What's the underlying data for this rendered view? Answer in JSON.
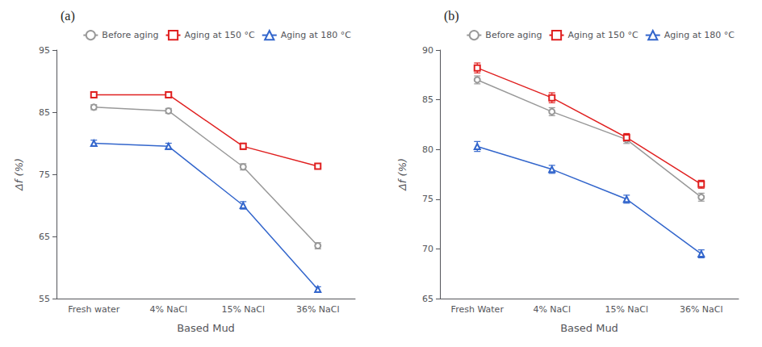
{
  "chart_data": [
    {
      "type": "line",
      "title": "(a)",
      "x_label": "Based Mud",
      "y_label": "Δf (%)",
      "categories": [
        "Fresh water",
        "4% NaCl",
        "15% NaCl",
        "36% NaCl"
      ],
      "ylim": [
        55,
        95
      ],
      "yticks": [
        55,
        65,
        75,
        85,
        95
      ],
      "grid": false,
      "legend": "upper right",
      "series": [
        {
          "name": "Before aging",
          "color": "#999999",
          "marker": "circle",
          "values": [
            85.8,
            85.2,
            76.2,
            63.5
          ],
          "errors": [
            0.4,
            0.4,
            0.5,
            0.5
          ]
        },
        {
          "name": "Aging at 150 °C",
          "color": "#e02020",
          "marker": "square",
          "values": [
            87.8,
            87.8,
            79.5,
            76.3
          ],
          "errors": [
            0.5,
            0.5,
            0.5,
            0.4
          ]
        },
        {
          "name": "Aging at 180 °C",
          "color": "#3366cc",
          "marker": "triangle",
          "values": [
            80.0,
            79.5,
            70.0,
            56.5
          ],
          "errors": [
            0.5,
            0.5,
            0.6,
            0.4
          ]
        }
      ]
    },
    {
      "type": "line",
      "title": "(b)",
      "x_label": "Based Mud",
      "y_label": "Δf (%)",
      "categories": [
        "Fresh Water",
        "4% NaCl",
        "15% NaCl",
        "36% NaCl"
      ],
      "ylim": [
        65,
        90
      ],
      "yticks": [
        65,
        70,
        75,
        80,
        85,
        90
      ],
      "grid": false,
      "legend": "upper right",
      "series": [
        {
          "name": "Before aging",
          "color": "#999999",
          "marker": "circle",
          "values": [
            87.0,
            83.8,
            81.0,
            75.2
          ],
          "errors": [
            0.4,
            0.4,
            0.4,
            0.4
          ]
        },
        {
          "name": "Aging at 150 °C",
          "color": "#e02020",
          "marker": "square",
          "values": [
            88.2,
            85.2,
            81.2,
            76.5
          ],
          "errors": [
            0.5,
            0.5,
            0.4,
            0.4
          ]
        },
        {
          "name": "Aging at 180 °C",
          "color": "#3366cc",
          "marker": "triangle",
          "values": [
            80.3,
            78.0,
            75.0,
            69.5
          ],
          "errors": [
            0.5,
            0.4,
            0.4,
            0.4
          ]
        }
      ]
    }
  ]
}
